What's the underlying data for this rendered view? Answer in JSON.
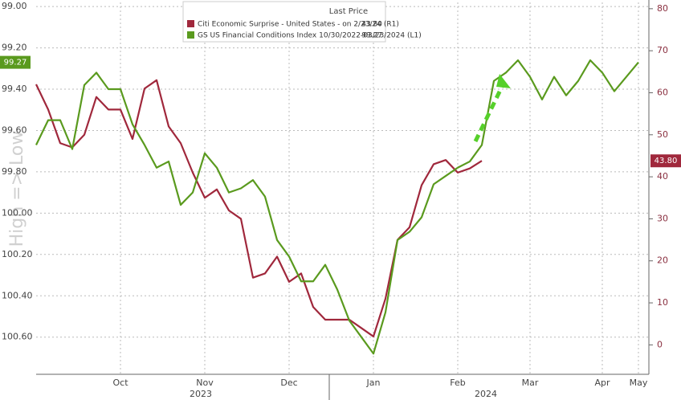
{
  "chart_data": {
    "type": "line",
    "legend_title": "Last Price",
    "y_label": "High => Low",
    "categories": [
      null,
      null,
      null,
      null,
      null,
      null,
      null,
      "Oct",
      null,
      null,
      null,
      null,
      null,
      null,
      "Nov",
      null,
      null,
      null,
      null,
      null,
      null,
      "Dec",
      null,
      null,
      null,
      null,
      null,
      null,
      "Jan",
      null,
      null,
      null,
      null,
      null,
      null,
      "Feb",
      null,
      null,
      null,
      null,
      null,
      "Mar",
      null,
      null,
      null,
      null,
      null,
      "Apr",
      null,
      null,
      "May"
    ],
    "years": [
      "2023",
      "2024"
    ],
    "ylim": [
      100.78,
      98.98
    ],
    "yticks": [
      {
        "value": 99,
        "label": "99.00"
      },
      {
        "value": 99.2,
        "label": "99.20"
      },
      {
        "value": 99.4,
        "label": "99.40"
      },
      {
        "value": 99.6,
        "label": "99.60"
      },
      {
        "value": 99.8,
        "label": "99.80"
      },
      {
        "value": 100,
        "label": "100.00"
      },
      {
        "value": 100.2,
        "label": "100.20"
      },
      {
        "value": 100.4,
        "label": "100.40"
      },
      {
        "value": 100.6,
        "label": "100.60"
      }
    ],
    "y2lim": [
      -7,
      81.5
    ],
    "y2ticks": [
      0,
      10,
      20,
      30,
      40,
      50,
      60,
      70,
      80
    ],
    "grid": true,
    "series": [
      {
        "name": "Citi Economic Surprise - United States - on 2/23/24 (R1)",
        "color": "#a0283c",
        "axis": "y2",
        "last_label": "43.80",
        "values": [
          62,
          56,
          48,
          47,
          50,
          59,
          56,
          56,
          49,
          61,
          63,
          52,
          48,
          41,
          35,
          37,
          32,
          30,
          16,
          17,
          21,
          15,
          17,
          9,
          6,
          6,
          6,
          4,
          2,
          11,
          25,
          28,
          38,
          43,
          44,
          41,
          42,
          43.8,
          null,
          null,
          null,
          null,
          null,
          null,
          null,
          null,
          null,
          null,
          null,
          null,
          null
        ]
      },
      {
        "name": "GS US Financial Conditions Index 10/30/2022-03/23/2024 (L1)",
        "color": "#5a9a1e",
        "axis": "y",
        "last_label": "99.27",
        "values": [
          99.67,
          99.55,
          99.55,
          99.69,
          99.38,
          99.32,
          99.4,
          99.4,
          99.57,
          99.67,
          99.78,
          99.75,
          99.96,
          99.9,
          99.71,
          99.78,
          99.9,
          99.88,
          99.84,
          99.92,
          100.13,
          100.21,
          100.33,
          100.33,
          100.25,
          100.37,
          100.52,
          100.6,
          100.68,
          100.48,
          100.13,
          100.09,
          100.02,
          99.86,
          99.82,
          99.78,
          99.75,
          99.67,
          99.36,
          99.32,
          99.26,
          99.34,
          99.45,
          99.34,
          99.43,
          99.36,
          99.26,
          99.32,
          99.41,
          99.34,
          99.27
        ]
      }
    ]
  }
}
